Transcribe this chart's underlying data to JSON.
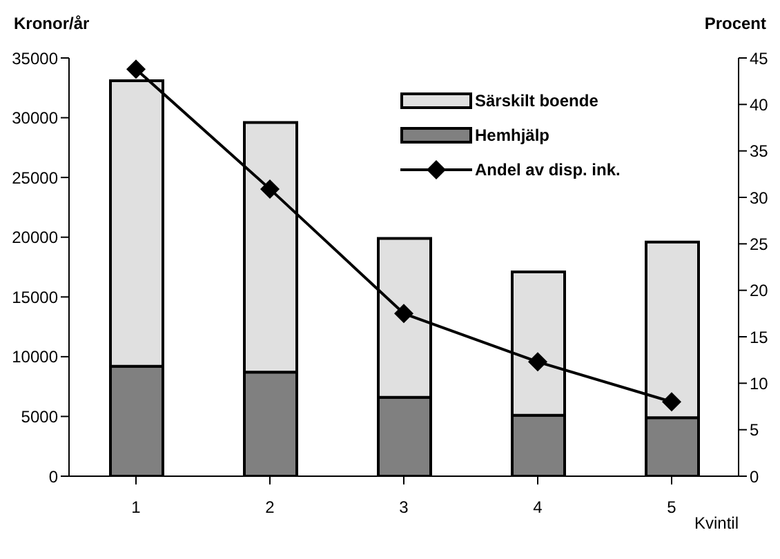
{
  "chart_data": {
    "type": "bar",
    "stacked": true,
    "ylabel": "Kronor/år",
    "y2label": "Procent",
    "xlabel": "Kvintil",
    "categories": [
      "1",
      "2",
      "3",
      "4",
      "5"
    ],
    "series": [
      {
        "name": "Hemhjälp",
        "color": "#808080",
        "values": [
          9200,
          8700,
          6600,
          5100,
          4900
        ]
      },
      {
        "name": "Särskilt boende",
        "color": "#e0e0e0",
        "values": [
          23900,
          20900,
          13300,
          12000,
          14700
        ]
      },
      {
        "name": "Andel av disp. ink.",
        "type": "line",
        "axis": "y2",
        "color": "#000000",
        "marker": "diamond",
        "values": [
          43.8,
          30.9,
          17.5,
          12.3,
          8.0
        ]
      }
    ],
    "ylim": [
      0,
      35000
    ],
    "yticks": [
      0,
      5000,
      10000,
      15000,
      20000,
      25000,
      30000,
      35000
    ],
    "y2lim": [
      0,
      45
    ],
    "y2ticks": [
      0,
      5,
      10,
      15,
      20,
      25,
      30,
      35,
      40,
      45
    ],
    "legend": "top right"
  }
}
